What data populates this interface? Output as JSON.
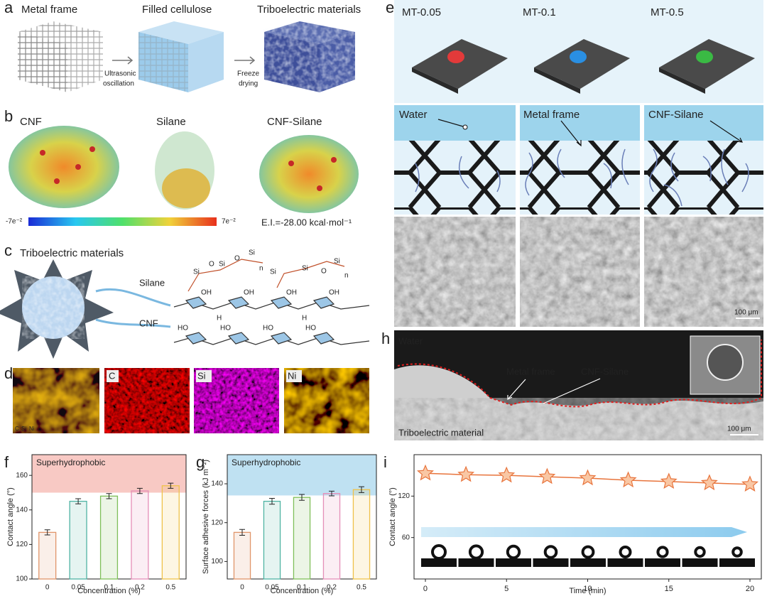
{
  "panel_a": {
    "label": "a",
    "titles": [
      "Metal frame",
      "Filled cellulose",
      "Triboelectric materials"
    ],
    "steps": [
      [
        "Ultrasonic",
        "oscillation"
      ],
      [
        "Freeze",
        "drying"
      ]
    ]
  },
  "panel_b": {
    "label": "b",
    "titles": [
      "CNF",
      "Silane",
      "CNF-Silane"
    ],
    "scale_min": "-7e⁻²",
    "scale_max": "7e⁻²",
    "energy": "E.I.=-28.00 kcal·mol⁻¹"
  },
  "panel_c": {
    "label": "c",
    "title": "Triboelectric materials",
    "labels": [
      "Silane",
      "CNF"
    ],
    "atoms": [
      "Si",
      "O",
      "OH",
      "HO",
      "n",
      "H"
    ]
  },
  "panel_d": {
    "label": "d",
    "maps": [
      "C",
      "Si",
      "Ni"
    ]
  },
  "panel_e": {
    "label": "e",
    "samples": [
      "MT-0.05",
      "MT-0.1",
      "MT-0.5"
    ],
    "schematic_labels": [
      "Water",
      "Metal frame",
      "CNF-Silane"
    ],
    "scale_bar": "100 μm"
  },
  "panel_h": {
    "label": "h",
    "labels": [
      "Water",
      "Metal frame",
      "CNF-Silane",
      "Triboelectric material"
    ],
    "scale_bar": "100 μm"
  },
  "chart_data": [
    {
      "panel": "f",
      "type": "bar",
      "annotation": "Superhydrophobic",
      "threshold": 150,
      "band_color": "#f8c9c4",
      "x_label": "Concentration (%)",
      "y_label": "Contact angle (°)",
      "categories": [
        "0",
        "0.05",
        "0.1",
        "0.2",
        "0.5"
      ],
      "values": [
        127,
        145,
        148,
        151,
        154
      ],
      "errors": [
        1.5,
        1.5,
        1.5,
        1.5,
        1.5
      ],
      "colors": [
        "#e0956a",
        "#4fb3a4",
        "#7fbf5a",
        "#e58fb8",
        "#efc24a"
      ],
      "ylim": [
        100,
        172
      ],
      "yticks": [
        100,
        120,
        140,
        160
      ]
    },
    {
      "panel": "g",
      "type": "bar",
      "annotation": "Superhydrophobic",
      "threshold": 134,
      "band_color": "#bfe1f2",
      "x_label": "Concentration (%)",
      "y_label": "Surface adhesive forces (kJ m⁻²)",
      "categories": [
        "0",
        "0.05",
        "0.1",
        "0.2",
        "0.5"
      ],
      "values": [
        115,
        131,
        133,
        135,
        137
      ],
      "errors": [
        1.5,
        1.5,
        1.5,
        1.2,
        1.5
      ],
      "colors": [
        "#e0956a",
        "#4fb3a4",
        "#7fbf5a",
        "#e58fb8",
        "#efc24a"
      ],
      "ylim": [
        91,
        155
      ],
      "yticks": [
        100,
        120,
        140
      ]
    },
    {
      "panel": "i",
      "type": "line",
      "x_label": "Time (min)",
      "y_label": "Contact angle (°)",
      "color": "#e8743c",
      "x": [
        0,
        2.5,
        5,
        7.5,
        10,
        12.5,
        15,
        17.5,
        20
      ],
      "values": [
        153,
        151,
        150,
        148,
        146,
        143,
        141,
        139,
        137
      ],
      "xlim": [
        -0.7,
        20.7
      ],
      "xticks": [
        0,
        5,
        10,
        15,
        20
      ],
      "ylim": [
        0,
        180
      ],
      "yticks": [
        60,
        120
      ]
    }
  ]
}
